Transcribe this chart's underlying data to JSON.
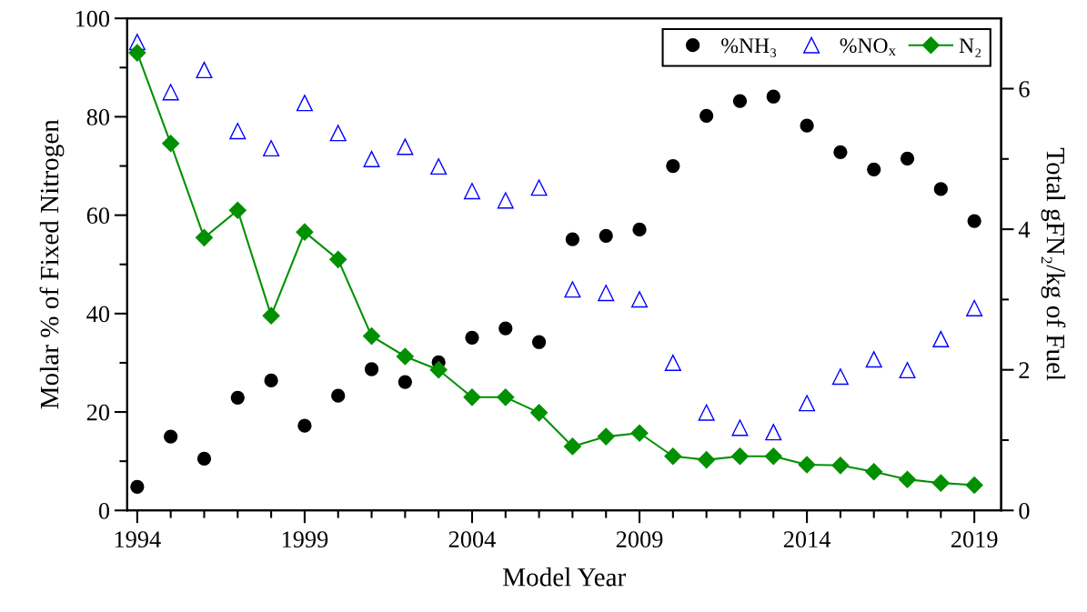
{
  "chart_data": {
    "type": "scatter",
    "xlabel": "Model Year",
    "ylabel": "Molar % of Fixed Nitrogen",
    "y2label": "Total gFN₂/kg of Fuel",
    "x": [
      1994,
      1995,
      1996,
      1997,
      1998,
      1999,
      2000,
      2001,
      2002,
      2003,
      2004,
      2005,
      2006,
      2007,
      2008,
      2009,
      2010,
      2011,
      2012,
      2013,
      2014,
      2015,
      2016,
      2017,
      2018,
      2019
    ],
    "series": [
      {
        "name": "%NH₃",
        "marker": "circle",
        "color": "#000000",
        "values": [
          4.8,
          15,
          10.5,
          22.9,
          26.4,
          17.2,
          23.3,
          28.7,
          26.1,
          30.1,
          35.1,
          37,
          34.2,
          55.1,
          55.8,
          57.1,
          70,
          80.2,
          83.2,
          84.1,
          78.2,
          72.8,
          69.3,
          71.5,
          65.3,
          58.8
        ]
      },
      {
        "name": "%NO$_{x}$",
        "marker": "triangle",
        "color": "#0000ff",
        "values": [
          95.2,
          85,
          89.5,
          77.1,
          73.6,
          82.8,
          76.7,
          71.4,
          73.9,
          69.9,
          64.9,
          63,
          65.6,
          44.9,
          44.2,
          42.9,
          30,
          19.9,
          16.8,
          15.9,
          21.8,
          27.2,
          30.7,
          28.5,
          34.8,
          41.1
        ]
      },
      {
        "name": "N₂",
        "type": "line",
        "marker": "diamond",
        "color": "#009000",
        "axis": "y2",
        "values": [
          6.51,
          5.22,
          3.88,
          4.27,
          2.77,
          3.96,
          3.57,
          2.48,
          2.19,
          2.0,
          1.61,
          1.61,
          1.39,
          0.91,
          1.05,
          1.1,
          0.77,
          0.72,
          0.77,
          0.77,
          0.65,
          0.64,
          0.55,
          0.44,
          0.39,
          0.36
        ]
      }
    ],
    "xlim": [
      1993.7,
      2019.8
    ],
    "xticks": [
      1994,
      {
        "value": 1995,
        "label": null
      },
      {
        "value": 1996,
        "label": null
      },
      {
        "value": 1997,
        "label": null
      },
      {
        "value": 1998,
        "label": null
      },
      1999,
      {
        "value": 2000,
        "label": null
      },
      {
        "value": 2001,
        "label": null
      },
      {
        "value": 2002,
        "label": null
      },
      {
        "value": 2003,
        "label": null
      },
      2004,
      {
        "value": 2005,
        "label": null
      },
      {
        "value": 2006,
        "label": null
      },
      {
        "value": 2007,
        "label": null
      },
      {
        "value": 2008,
        "label": null
      },
      2009,
      {
        "value": 2010,
        "label": null
      },
      {
        "value": 2011,
        "label": null
      },
      {
        "value": 2012,
        "label": null
      },
      {
        "value": 2013,
        "label": null
      },
      2014,
      {
        "value": 2015,
        "label": null
      },
      {
        "value": 2016,
        "label": null
      },
      {
        "value": 2017,
        "label": null
      },
      {
        "value": 2018,
        "label": null
      },
      2019
    ],
    "ylim": [
      0,
      100
    ],
    "yticks": [
      0,
      {
        "value": 10,
        "label": null
      },
      20,
      {
        "value": 30,
        "label": null
      },
      40,
      {
        "value": 50,
        "label": null
      },
      60,
      {
        "value": 70,
        "label": null
      },
      80,
      {
        "value": 90,
        "label": null
      },
      100
    ],
    "y2lim": [
      0,
      7
    ],
    "y2ticks": [
      0,
      {
        "value": 1,
        "label": null
      },
      2,
      {
        "value": 3,
        "label": null
      },
      4,
      {
        "value": 5,
        "label": null
      },
      6
    ],
    "legend": "top right",
    "grid": false
  }
}
